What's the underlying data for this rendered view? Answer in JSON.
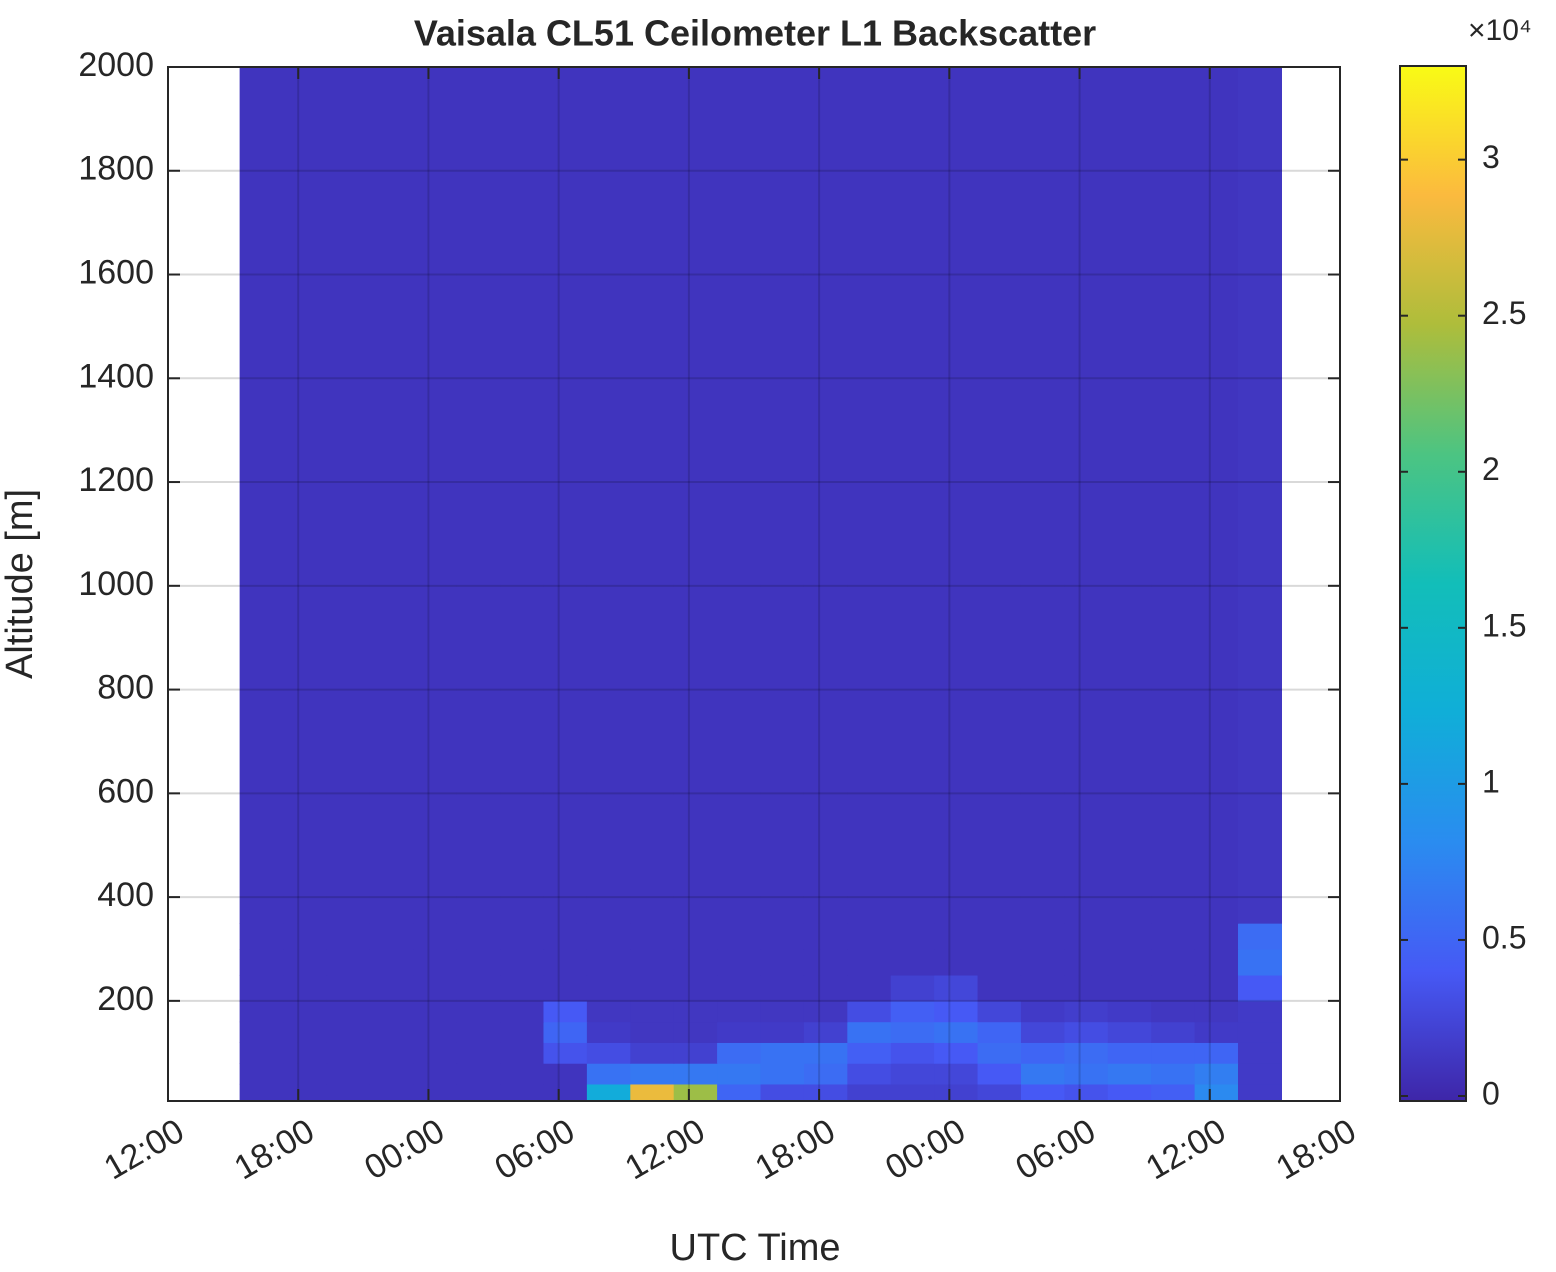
{
  "chart_data": {
    "type": "heatmap",
    "title": "Vaisala CL51 Ceilometer L1 Backscatter",
    "x_label": "UTC Time",
    "y_label": "Altitude [m]",
    "x_edges": [
      3.3,
      5.3,
      7.3,
      9.3,
      11.3,
      13.3,
      15.3,
      17.3,
      19.3,
      21.3,
      23.3,
      25.3,
      27.3,
      29.3,
      31.3,
      33.3,
      35.3,
      37.3,
      39.3,
      41.3,
      43.3,
      45.3,
      47.3,
      49.3,
      51.3
    ],
    "y_edges": [
      7,
      40,
      80,
      120,
      160,
      200,
      250,
      300,
      350,
      2000
    ],
    "values": [
      [
        1000,
        1000,
        1000,
        1000,
        1000,
        1000,
        1000,
        1000,
        12000,
        28000,
        24000,
        5000,
        3000,
        3000,
        2000,
        2000,
        2000,
        2500,
        4000,
        3500,
        4000,
        4500,
        8000,
        1500
      ],
      [
        1000,
        1000,
        1000,
        1000,
        1000,
        1000,
        1000,
        1000,
        6000,
        6500,
        6500,
        6500,
        6000,
        5500,
        3000,
        2500,
        2500,
        4000,
        6500,
        6000,
        6500,
        6000,
        7000,
        1500
      ],
      [
        1000,
        1000,
        1000,
        1000,
        1000,
        1000,
        1000,
        3500,
        3000,
        2000,
        2000,
        5500,
        6000,
        6000,
        4500,
        3500,
        4000,
        5500,
        5000,
        5500,
        5000,
        5000,
        5000,
        1500
      ],
      [
        1000,
        1000,
        1000,
        1000,
        1000,
        1000,
        1000,
        5000,
        1500,
        1200,
        1200,
        1500,
        1500,
        2000,
        6000,
        5500,
        6000,
        5000,
        2500,
        3000,
        2500,
        2000,
        1500,
        1500
      ],
      [
        1000,
        1000,
        1000,
        1000,
        1000,
        1000,
        1000,
        4000,
        1200,
        1200,
        1200,
        1200,
        1200,
        1200,
        3000,
        4500,
        4000,
        2500,
        1500,
        1800,
        1500,
        1200,
        1200,
        1500
      ],
      [
        1000,
        1000,
        1000,
        1000,
        1000,
        1000,
        1000,
        1000,
        1000,
        1000,
        1000,
        1000,
        1000,
        1000,
        1000,
        2000,
        2500,
        1000,
        1000,
        1000,
        1000,
        1000,
        1000,
        4000
      ],
      [
        1000,
        1000,
        1000,
        1000,
        1000,
        1000,
        1000,
        1000,
        1000,
        1000,
        1000,
        1000,
        1000,
        1000,
        1000,
        1000,
        1000,
        1000,
        1000,
        1000,
        1000,
        1000,
        1000,
        6000
      ],
      [
        1000,
        1000,
        1000,
        1000,
        1000,
        1000,
        1000,
        1000,
        1000,
        1000,
        1000,
        1000,
        1000,
        1000,
        1000,
        1000,
        1000,
        1000,
        1000,
        1000,
        1000,
        1000,
        1000,
        5500
      ],
      [
        1000,
        1000,
        1000,
        1000,
        1000,
        1000,
        1000,
        1000,
        1000,
        1000,
        1000,
        1000,
        1000,
        1000,
        1000,
        1000,
        1000,
        1000,
        1000,
        1000,
        1000,
        1000,
        1000,
        1200
      ]
    ],
    "xlim": [
      0,
      54
    ],
    "xticks": [
      {
        "value": 0,
        "label": "12:00"
      },
      {
        "value": 6,
        "label": "18:00"
      },
      {
        "value": 12,
        "label": "00:00"
      },
      {
        "value": 18,
        "label": "06:00"
      },
      {
        "value": 24,
        "label": "12:00"
      },
      {
        "value": 30,
        "label": "18:00"
      },
      {
        "value": 36,
        "label": "00:00"
      },
      {
        "value": 42,
        "label": "06:00"
      },
      {
        "value": 48,
        "label": "12:00"
      },
      {
        "value": 54,
        "label": "18:00"
      }
    ],
    "ylim": [
      7,
      2000
    ],
    "yticks": [
      200,
      400,
      600,
      800,
      1000,
      1200,
      1400,
      1600,
      1800,
      2000
    ],
    "grid": true,
    "clim": [
      -160,
      33000
    ],
    "cticks": [
      0,
      {
        "value": 5000,
        "label": "0.5"
      },
      {
        "value": 10000,
        "label": "1"
      },
      {
        "value": 15000,
        "label": "1.5"
      },
      {
        "value": 20000,
        "label": "2"
      },
      {
        "value": 25000,
        "label": "2.5"
      },
      {
        "value": 30000,
        "label": "3"
      }
    ],
    "colorbar_multiplier": "×10⁴",
    "colormap": [
      "#3e26a8",
      "#4659f5",
      "#2a8cf0",
      "#10aed8",
      "#12beb9",
      "#4cc482",
      "#aebd3b",
      "#fbba3e",
      "#f9fb15"
    ]
  }
}
